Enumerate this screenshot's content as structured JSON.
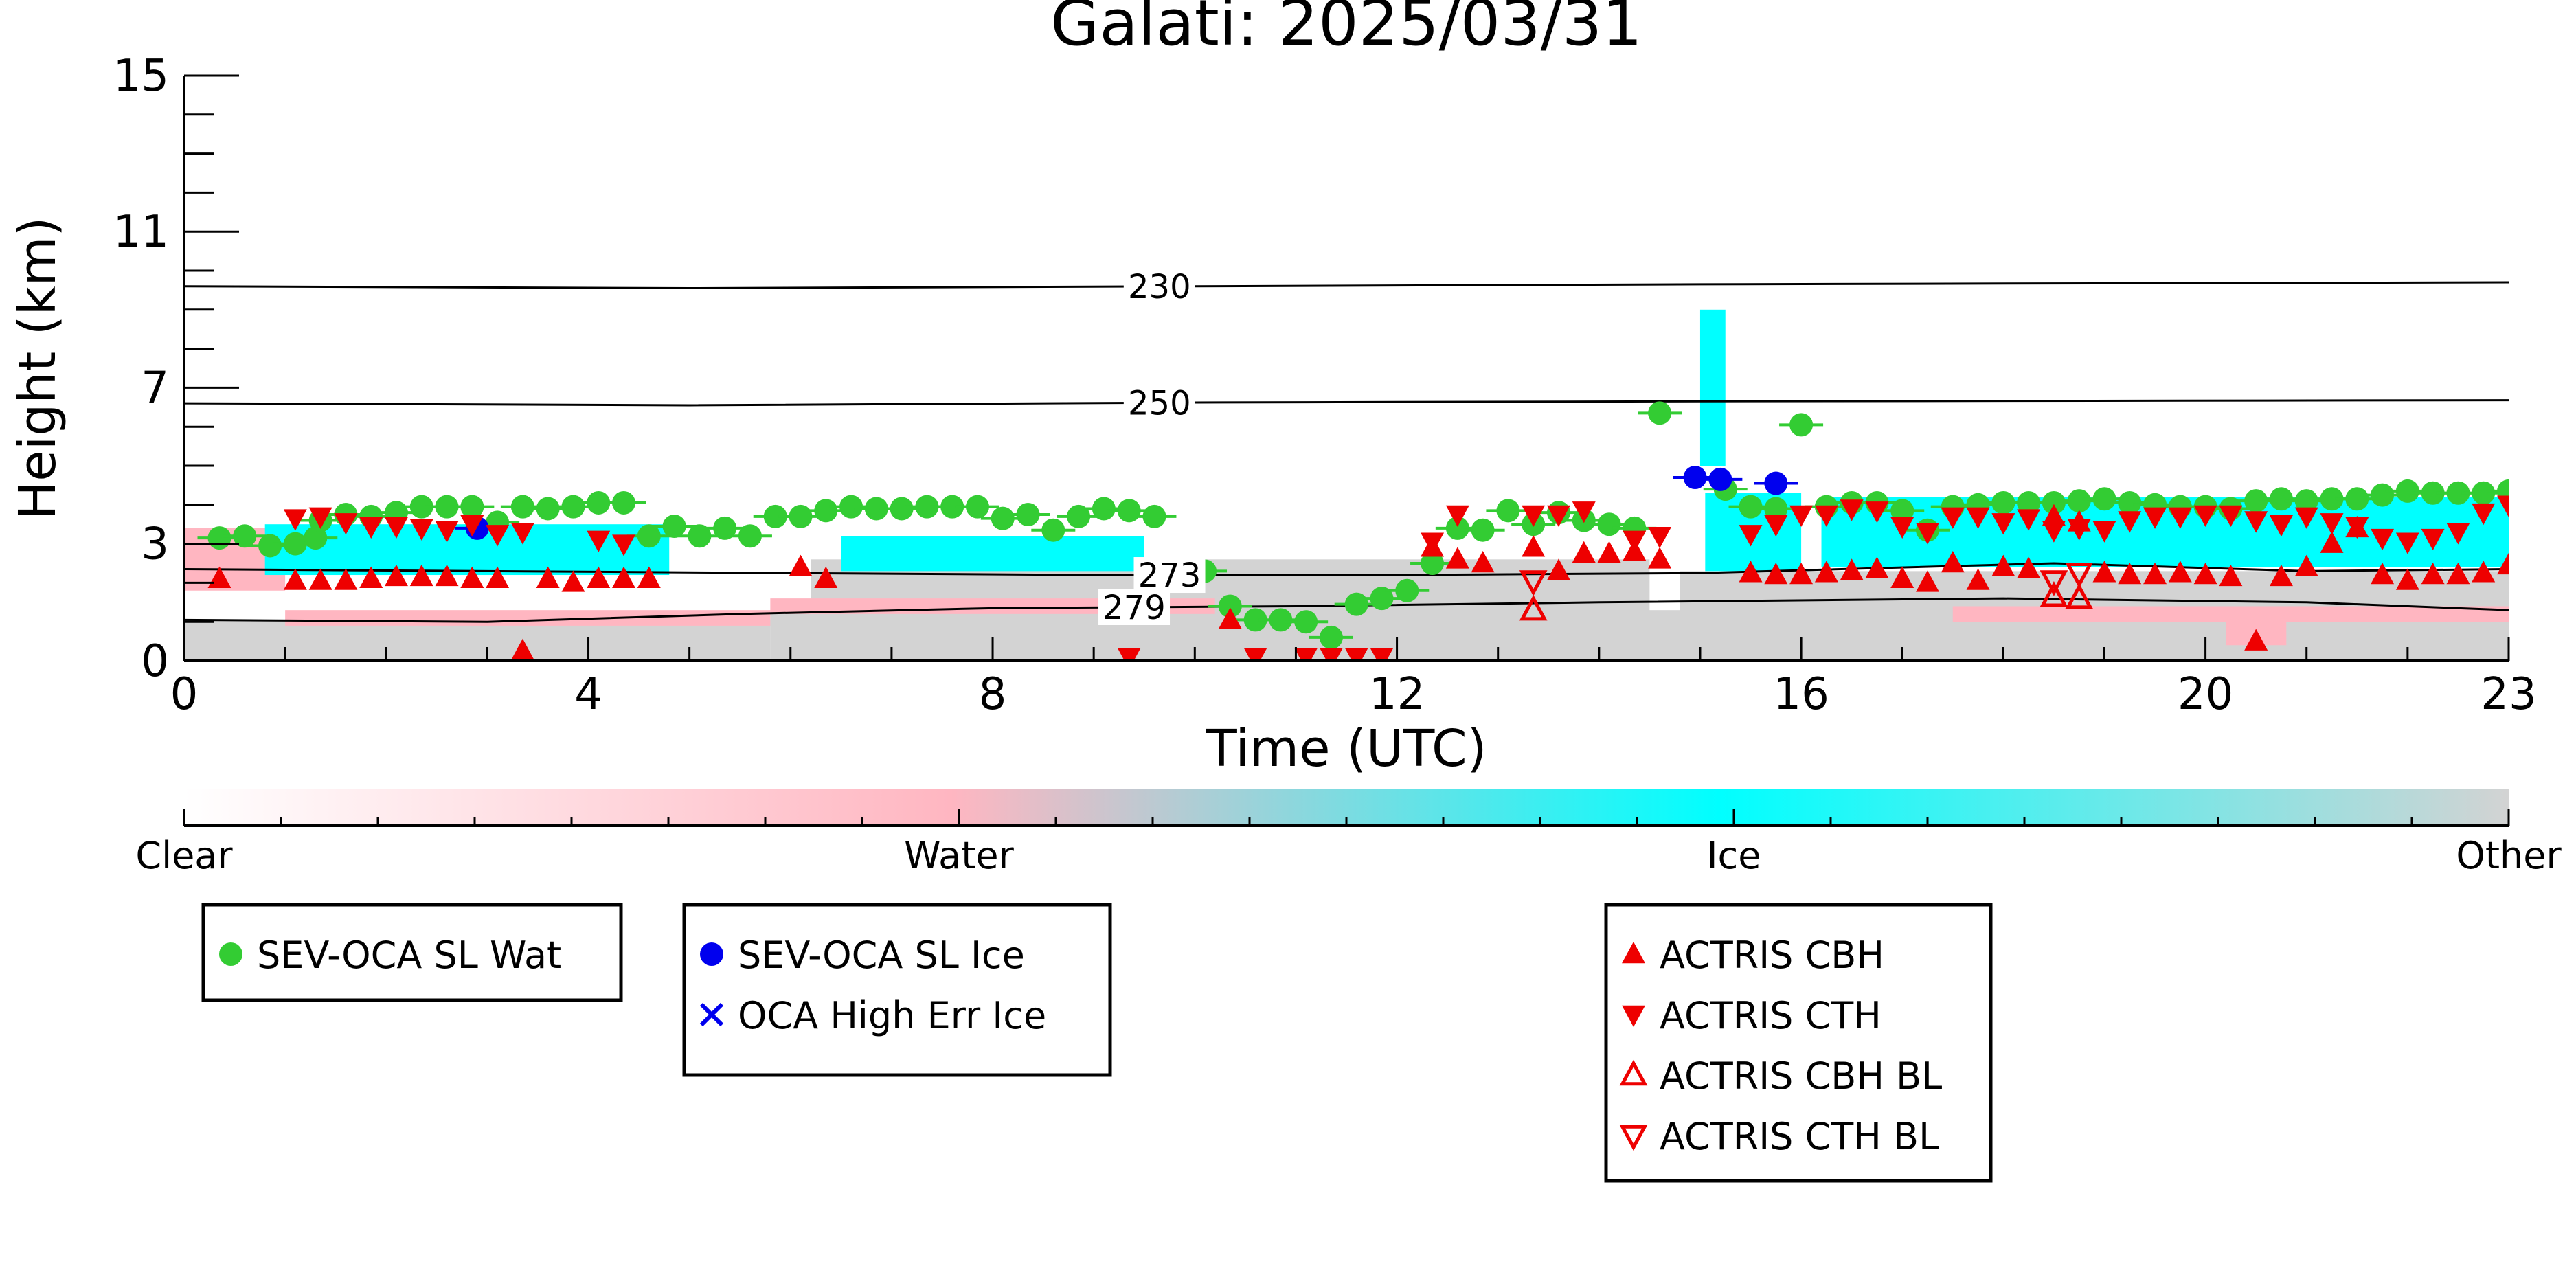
{
  "chart_data": {
    "type": "scatter",
    "title": "Galati: 2025/03/31",
    "xlabel": "Time (UTC)",
    "ylabel": "Height (km)",
    "xlim": [
      0,
      23
    ],
    "ylim": [
      0,
      15
    ],
    "x_ticks": [
      0,
      4,
      8,
      12,
      16,
      20,
      23
    ],
    "y_ticks": [
      0,
      3,
      7,
      11,
      15
    ],
    "contours": [
      {
        "label": "230",
        "label_x": 9.65,
        "points": [
          [
            0,
            9.6
          ],
          [
            5,
            9.55
          ],
          [
            10,
            9.6
          ],
          [
            15,
            9.65
          ],
          [
            23,
            9.7
          ]
        ]
      },
      {
        "label": "250",
        "label_x": 9.65,
        "points": [
          [
            0,
            6.6
          ],
          [
            5,
            6.55
          ],
          [
            10,
            6.62
          ],
          [
            15,
            6.65
          ],
          [
            23,
            6.68
          ]
        ]
      },
      {
        "label": "273",
        "label_x": 9.75,
        "points": [
          [
            0,
            2.35
          ],
          [
            3,
            2.3
          ],
          [
            6,
            2.25
          ],
          [
            9,
            2.2
          ],
          [
            12,
            2.2
          ],
          [
            15,
            2.25
          ],
          [
            18.5,
            2.5
          ],
          [
            21,
            2.3
          ],
          [
            23,
            2.35
          ]
        ]
      },
      {
        "label": "279",
        "label_x": 9.4,
        "points": [
          [
            0,
            1.05
          ],
          [
            3,
            1.0
          ],
          [
            5.5,
            1.2
          ],
          [
            8,
            1.35
          ],
          [
            11,
            1.4
          ],
          [
            14,
            1.5
          ],
          [
            18,
            1.6
          ],
          [
            21,
            1.5
          ],
          [
            23,
            1.3
          ]
        ]
      }
    ],
    "colorbar": {
      "labels": [
        "Clear",
        "Water",
        "Ice",
        "Other"
      ],
      "stops": [
        {
          "offset": 0.0,
          "color": "#ffffff"
        },
        {
          "offset": 0.33,
          "color": "#ffb6c1"
        },
        {
          "offset": 0.66,
          "color": "#00ffff"
        },
        {
          "offset": 1.0,
          "color": "#d3d3d3"
        }
      ]
    },
    "classification_background": [
      {
        "class": "Other",
        "color": "#d3d3d3",
        "regions": [
          [
            0,
            5.8,
            0,
            1.05
          ],
          [
            5.8,
            23,
            0,
            1.3
          ],
          [
            6.2,
            14.5,
            1.0,
            2.6
          ],
          [
            10.2,
            12.0,
            1.3,
            2.5
          ],
          [
            14.8,
            23,
            1.0,
            2.3
          ]
        ]
      },
      {
        "class": "Water",
        "color": "#ffb6c1",
        "regions": [
          [
            0,
            1.0,
            1.8,
            3.4
          ],
          [
            1.0,
            5.8,
            0.9,
            1.3
          ],
          [
            5.8,
            10.2,
            1.2,
            1.6
          ],
          [
            17.5,
            23,
            1.0,
            1.4
          ],
          [
            20.2,
            20.8,
            0.4,
            1.2
          ]
        ]
      },
      {
        "class": "Ice",
        "color": "#00ffff",
        "regions": [
          [
            0.8,
            4.8,
            2.2,
            3.5
          ],
          [
            6.5,
            9.5,
            2.3,
            3.2
          ],
          [
            15.0,
            15.25,
            5.0,
            9.0
          ],
          [
            15.05,
            16.0,
            2.3,
            4.3
          ],
          [
            16.2,
            23,
            2.4,
            4.2
          ]
        ]
      }
    ],
    "series": [
      {
        "name": "SEV-OCA SL Wat",
        "color": "#33cc33",
        "marker": "circle",
        "points": [
          [
            0.35,
            3.15
          ],
          [
            0.6,
            3.2
          ],
          [
            0.85,
            2.95
          ],
          [
            1.1,
            3.0
          ],
          [
            1.3,
            3.15
          ],
          [
            1.35,
            3.6
          ],
          [
            1.6,
            3.75
          ],
          [
            1.85,
            3.7
          ],
          [
            2.1,
            3.8
          ],
          [
            2.35,
            3.95
          ],
          [
            2.6,
            3.95
          ],
          [
            2.85,
            3.95
          ],
          [
            3.1,
            3.55
          ],
          [
            3.35,
            3.95
          ],
          [
            3.6,
            3.9
          ],
          [
            3.85,
            3.95
          ],
          [
            4.1,
            4.05
          ],
          [
            4.35,
            4.05
          ],
          [
            4.6,
            3.2
          ],
          [
            4.85,
            3.45
          ],
          [
            5.1,
            3.2
          ],
          [
            5.35,
            3.4
          ],
          [
            5.6,
            3.2
          ],
          [
            5.85,
            3.7
          ],
          [
            6.1,
            3.7
          ],
          [
            6.35,
            3.85
          ],
          [
            6.6,
            3.95
          ],
          [
            6.85,
            3.9
          ],
          [
            7.1,
            3.9
          ],
          [
            7.35,
            3.95
          ],
          [
            7.6,
            3.95
          ],
          [
            7.85,
            3.95
          ],
          [
            8.1,
            3.65
          ],
          [
            8.35,
            3.75
          ],
          [
            8.6,
            3.35
          ],
          [
            8.85,
            3.7
          ],
          [
            9.1,
            3.9
          ],
          [
            9.35,
            3.85
          ],
          [
            9.6,
            3.7
          ],
          [
            9.85,
            2.3
          ],
          [
            10.1,
            2.3
          ],
          [
            10.35,
            1.4
          ],
          [
            10.6,
            1.05
          ],
          [
            10.85,
            1.05
          ],
          [
            11.1,
            1.0
          ],
          [
            11.35,
            0.6
          ],
          [
            11.6,
            1.45
          ],
          [
            11.85,
            1.6
          ],
          [
            12.1,
            1.8
          ],
          [
            12.35,
            2.5
          ],
          [
            12.6,
            3.4
          ],
          [
            12.85,
            3.35
          ],
          [
            13.1,
            3.85
          ],
          [
            13.35,
            3.5
          ],
          [
            13.6,
            3.8
          ],
          [
            13.85,
            3.6
          ],
          [
            14.1,
            3.5
          ],
          [
            14.35,
            3.4
          ],
          [
            14.6,
            6.35
          ],
          [
            15.25,
            4.4
          ],
          [
            15.5,
            3.95
          ],
          [
            15.75,
            3.9
          ],
          [
            16.0,
            6.05
          ],
          [
            16.25,
            3.95
          ],
          [
            16.5,
            4.05
          ],
          [
            16.75,
            4.05
          ],
          [
            17.0,
            3.85
          ],
          [
            17.25,
            3.35
          ],
          [
            17.5,
            3.95
          ],
          [
            17.75,
            4.0
          ],
          [
            18.0,
            4.05
          ],
          [
            18.25,
            4.05
          ],
          [
            18.5,
            4.05
          ],
          [
            18.75,
            4.1
          ],
          [
            19.0,
            4.15
          ],
          [
            19.25,
            4.05
          ],
          [
            19.5,
            4.0
          ],
          [
            19.75,
            3.95
          ],
          [
            20.0,
            3.95
          ],
          [
            20.25,
            3.9
          ],
          [
            20.5,
            4.1
          ],
          [
            20.75,
            4.15
          ],
          [
            21.0,
            4.1
          ],
          [
            21.25,
            4.15
          ],
          [
            21.5,
            4.15
          ],
          [
            21.75,
            4.25
          ],
          [
            22.0,
            4.35
          ],
          [
            22.25,
            4.3
          ],
          [
            22.5,
            4.3
          ],
          [
            22.75,
            4.3
          ],
          [
            23.0,
            4.35
          ]
        ]
      },
      {
        "name": "SEV-OCA SL Ice",
        "color": "#0000ee",
        "marker": "circle",
        "points": [
          [
            2.9,
            3.4
          ],
          [
            14.95,
            4.7
          ],
          [
            15.2,
            4.65
          ],
          [
            15.75,
            4.55
          ]
        ]
      },
      {
        "name": "OCA High Err Ice",
        "color": "#0000ee",
        "marker": "x",
        "points": []
      },
      {
        "name": "ACTRIS CBH",
        "color": "#ee0000",
        "marker": "triangle-up",
        "points": [
          [
            0.35,
            2.1
          ],
          [
            1.1,
            2.05
          ],
          [
            1.35,
            2.05
          ],
          [
            1.6,
            2.05
          ],
          [
            1.85,
            2.1
          ],
          [
            2.1,
            2.15
          ],
          [
            2.35,
            2.15
          ],
          [
            2.6,
            2.15
          ],
          [
            2.85,
            2.1
          ],
          [
            3.1,
            2.1
          ],
          [
            3.35,
            0.25
          ],
          [
            3.6,
            2.1
          ],
          [
            3.85,
            2.0
          ],
          [
            4.1,
            2.1
          ],
          [
            4.35,
            2.1
          ],
          [
            4.6,
            2.1
          ],
          [
            6.1,
            2.4
          ],
          [
            6.35,
            2.1
          ],
          [
            10.35,
            1.05
          ],
          [
            12.35,
            2.9
          ],
          [
            12.6,
            2.6
          ],
          [
            12.85,
            2.5
          ],
          [
            13.35,
            2.9
          ],
          [
            13.6,
            2.3
          ],
          [
            13.85,
            2.75
          ],
          [
            14.1,
            2.75
          ],
          [
            14.35,
            2.8
          ],
          [
            14.6,
            2.6
          ],
          [
            15.5,
            2.25
          ],
          [
            15.75,
            2.2
          ],
          [
            16.0,
            2.2
          ],
          [
            16.25,
            2.25
          ],
          [
            16.5,
            2.3
          ],
          [
            16.75,
            2.35
          ],
          [
            17.0,
            2.1
          ],
          [
            17.25,
            2.0
          ],
          [
            17.5,
            2.5
          ],
          [
            17.75,
            2.05
          ],
          [
            18.0,
            2.4
          ],
          [
            18.25,
            2.35
          ],
          [
            18.5,
            3.7
          ],
          [
            18.75,
            3.55
          ],
          [
            19.0,
            2.25
          ],
          [
            19.25,
            2.2
          ],
          [
            19.5,
            2.2
          ],
          [
            19.75,
            2.25
          ],
          [
            20.0,
            2.2
          ],
          [
            20.25,
            2.15
          ],
          [
            20.5,
            0.5
          ],
          [
            20.75,
            2.15
          ],
          [
            21.0,
            2.4
          ],
          [
            21.25,
            3.0
          ],
          [
            21.5,
            3.4
          ],
          [
            21.75,
            2.2
          ],
          [
            22.0,
            2.05
          ],
          [
            22.25,
            2.2
          ],
          [
            22.5,
            2.2
          ],
          [
            22.75,
            2.25
          ],
          [
            23.0,
            2.45
          ]
        ]
      },
      {
        "name": "ACTRIS CTH",
        "color": "#ee0000",
        "marker": "triangle-down",
        "points": [
          [
            1.1,
            3.65
          ],
          [
            1.35,
            3.7
          ],
          [
            1.6,
            3.55
          ],
          [
            1.85,
            3.45
          ],
          [
            2.1,
            3.45
          ],
          [
            2.35,
            3.4
          ],
          [
            2.6,
            3.35
          ],
          [
            2.85,
            3.5
          ],
          [
            3.1,
            3.25
          ],
          [
            3.35,
            3.3
          ],
          [
            4.1,
            3.1
          ],
          [
            4.35,
            3.0
          ],
          [
            9.35,
            0.1
          ],
          [
            10.6,
            0.1
          ],
          [
            11.1,
            0.1
          ],
          [
            11.35,
            0.1
          ],
          [
            11.6,
            0.1
          ],
          [
            11.85,
            0.1
          ],
          [
            12.35,
            3.05
          ],
          [
            12.6,
            3.75
          ],
          [
            13.35,
            3.75
          ],
          [
            13.6,
            3.75
          ],
          [
            13.85,
            3.85
          ],
          [
            14.35,
            3.1
          ],
          [
            14.6,
            3.2
          ],
          [
            15.5,
            3.25
          ],
          [
            15.75,
            3.5
          ],
          [
            16.0,
            3.75
          ],
          [
            16.25,
            3.75
          ],
          [
            16.5,
            3.9
          ],
          [
            16.75,
            3.85
          ],
          [
            17.0,
            3.45
          ],
          [
            17.25,
            3.3
          ],
          [
            17.5,
            3.7
          ],
          [
            17.75,
            3.7
          ],
          [
            18.0,
            3.55
          ],
          [
            18.25,
            3.65
          ],
          [
            18.5,
            3.35
          ],
          [
            18.75,
            3.4
          ],
          [
            19.0,
            3.35
          ],
          [
            19.25,
            3.6
          ],
          [
            19.5,
            3.7
          ],
          [
            19.75,
            3.7
          ],
          [
            20.0,
            3.75
          ],
          [
            20.25,
            3.75
          ],
          [
            20.5,
            3.6
          ],
          [
            20.75,
            3.5
          ],
          [
            21.0,
            3.7
          ],
          [
            21.25,
            3.55
          ],
          [
            21.5,
            3.45
          ],
          [
            21.75,
            3.15
          ],
          [
            22.0,
            3.05
          ],
          [
            22.25,
            3.15
          ],
          [
            22.5,
            3.3
          ],
          [
            22.75,
            3.8
          ],
          [
            23.0,
            4.0
          ]
        ]
      },
      {
        "name": "ACTRIS CBH BL",
        "color": "#ee0000",
        "marker": "triangle-up-open",
        "points": [
          [
            13.35,
            1.3
          ],
          [
            18.5,
            1.65
          ],
          [
            18.75,
            1.6
          ]
        ]
      },
      {
        "name": "ACTRIS CTH BL",
        "color": "#ee0000",
        "marker": "triangle-down-open",
        "points": [
          [
            13.35,
            2.05
          ],
          [
            18.5,
            2.05
          ],
          [
            18.75,
            2.25
          ]
        ]
      }
    ],
    "legend_placement": "bottom, three boxes"
  }
}
